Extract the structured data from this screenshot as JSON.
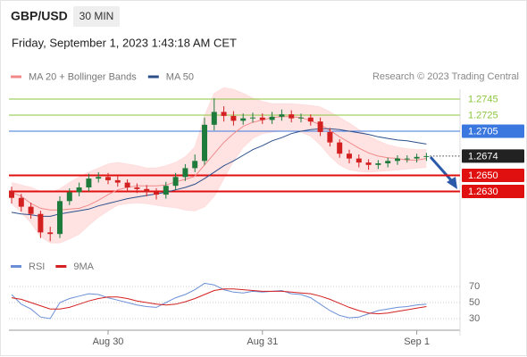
{
  "chart_data": [
    {
      "type": "candlestick",
      "title": "GBP/USD",
      "timeframe": "30 MIN",
      "subtitle": "Friday, September 1, 2023 1:43:18 AM CET",
      "attribution": "Research © 2023 Trading Central",
      "up_color": "#1e7b3c",
      "down_color": "#d32020",
      "categories": [
        null,
        null,
        null,
        null,
        null,
        null,
        null,
        null,
        null,
        null,
        "Aug 30",
        null,
        null,
        null,
        null,
        null,
        null,
        null,
        null,
        null,
        null,
        null,
        null,
        null,
        null,
        null,
        "Aug 31",
        null,
        null,
        null,
        null,
        null,
        null,
        null,
        null,
        null,
        null,
        null,
        null,
        null,
        null,
        null,
        "Sep 1",
        null
      ],
      "open": [
        1.263,
        1.2622,
        1.2611,
        1.2602,
        1.2579,
        1.2577,
        1.2618,
        1.2629,
        1.2635,
        1.2646,
        1.2648,
        1.2644,
        1.2641,
        1.2635,
        1.2633,
        1.2629,
        1.2626,
        1.2637,
        1.2648,
        1.2659,
        1.2668,
        1.2713,
        1.2729,
        1.2724,
        1.2718,
        1.2721,
        1.2722,
        1.2719,
        1.2723,
        1.2726,
        1.2721,
        1.2722,
        1.2717,
        1.2704,
        1.2691,
        1.2677,
        1.2671,
        1.2666,
        1.2663,
        1.2665,
        1.2668,
        1.2671,
        1.2671,
        1.2673
      ],
      "high": [
        1.2636,
        1.2627,
        1.2616,
        1.2606,
        1.2586,
        1.2624,
        1.2634,
        1.2641,
        1.2652,
        1.2654,
        1.2653,
        1.2649,
        1.2645,
        1.264,
        1.2638,
        1.2634,
        1.2642,
        1.2653,
        1.2664,
        1.2676,
        1.2722,
        1.2746,
        1.2736,
        1.273,
        1.2727,
        1.2728,
        1.2727,
        1.2729,
        1.2732,
        1.2731,
        1.2727,
        1.2726,
        1.2722,
        1.2709,
        1.2695,
        1.2682,
        1.2676,
        1.267,
        1.2669,
        1.2672,
        1.2675,
        1.2675,
        1.2677,
        1.2678
      ],
      "low": [
        1.2615,
        1.2605,
        1.2596,
        1.2572,
        1.2568,
        1.2572,
        1.2613,
        1.2624,
        1.263,
        1.2641,
        1.2639,
        1.2636,
        1.263,
        1.2628,
        1.2624,
        1.262,
        1.2621,
        1.2632,
        1.2643,
        1.2654,
        1.2663,
        1.2706,
        1.2717,
        1.2712,
        1.2713,
        1.2716,
        1.2714,
        1.2714,
        1.2718,
        1.2716,
        1.2716,
        1.2712,
        1.2699,
        1.2686,
        1.2672,
        1.2665,
        1.266,
        1.2657,
        1.2658,
        1.266,
        1.2663,
        1.2666,
        1.2666,
        1.2668
      ],
      "close": [
        1.2622,
        1.2611,
        1.2602,
        1.2579,
        1.2577,
        1.2618,
        1.2629,
        1.2635,
        1.2646,
        1.2648,
        1.2644,
        1.2641,
        1.2635,
        1.2633,
        1.2629,
        1.2626,
        1.2637,
        1.2648,
        1.2659,
        1.2668,
        1.2713,
        1.2729,
        1.2724,
        1.2718,
        1.2721,
        1.2722,
        1.2719,
        1.2723,
        1.2726,
        1.2721,
        1.2722,
        1.2717,
        1.2704,
        1.2691,
        1.2677,
        1.2671,
        1.2666,
        1.2663,
        1.2665,
        1.2668,
        1.2671,
        1.2671,
        1.2673,
        1.2674
      ],
      "series": [
        {
          "name": "MA 20 + Bollinger Bands",
          "color": "#f08a8a",
          "band_color": "#ffdcdc",
          "values": [
            1.2629,
            1.2624,
            1.2615,
            1.2609,
            1.2607,
            1.2607,
            1.2608,
            1.2609,
            1.2613,
            1.2619,
            1.2626,
            1.2632,
            1.2635,
            1.2637,
            1.2637,
            1.2637,
            1.2638,
            1.2642,
            1.2645,
            1.2649,
            1.2663,
            1.2677,
            1.2691,
            1.2702,
            1.2711,
            1.2716,
            1.2719,
            1.2722,
            1.2723,
            1.2723,
            1.2722,
            1.2718,
            1.2713,
            1.2706,
            1.2698,
            1.2691,
            1.2684,
            1.2678,
            1.2674,
            1.2672,
            1.2671,
            1.2669,
            1.2669,
            1.2671
          ],
          "upper": [
            1.2641,
            1.2638,
            1.2635,
            1.263,
            1.2629,
            1.2633,
            1.2641,
            1.2648,
            1.2654,
            1.2659,
            1.2664,
            1.2666,
            1.2664,
            1.2662,
            1.2659,
            1.2659,
            1.2662,
            1.2666,
            1.2673,
            1.2685,
            1.2724,
            1.2752,
            1.2759,
            1.2757,
            1.2752,
            1.2746,
            1.2742,
            1.2739,
            1.2739,
            1.2739,
            1.2738,
            1.2737,
            1.2735,
            1.2729,
            1.2722,
            1.2715,
            1.2707,
            1.2699,
            1.2693,
            1.2688,
            1.2685,
            1.2683,
            1.2682,
            1.2682
          ],
          "lower": [
            1.2615,
            1.2604,
            1.2591,
            1.2574,
            1.2566,
            1.2566,
            1.2571,
            1.2577,
            1.2588,
            1.2598,
            1.2606,
            1.2613,
            1.2615,
            1.2616,
            1.2615,
            1.2613,
            1.2611,
            1.261,
            1.2607,
            1.2606,
            1.2611,
            1.2624,
            1.2646,
            1.2668,
            1.2685,
            1.2696,
            1.2702,
            1.2704,
            1.2705,
            1.2705,
            1.2704,
            1.2699,
            1.2688,
            1.2674,
            1.2663,
            1.2657,
            1.2655,
            1.2654,
            1.2655,
            1.2656,
            1.2657,
            1.2658,
            1.2659,
            1.266
          ]
        },
        {
          "name": "MA 50",
          "color": "#2c4f8a",
          "values": [
            1.2604,
            1.2602,
            1.2601,
            1.2599,
            1.2599,
            1.2602,
            1.2604,
            1.2606,
            1.2608,
            1.2612,
            1.2615,
            1.2618,
            1.2621,
            1.2623,
            1.2625,
            1.2627,
            1.2629,
            1.2632,
            1.2635,
            1.2639,
            1.2646,
            1.2654,
            1.2662,
            1.2668,
            1.2675,
            1.2682,
            1.2687,
            1.2693,
            1.2697,
            1.2702,
            1.2705,
            1.2707,
            1.2708,
            1.2708,
            1.2707,
            1.2705,
            1.2703,
            1.2701,
            1.2698,
            1.2696,
            1.2694,
            1.2693,
            1.2691,
            1.2689
          ]
        }
      ],
      "levels": [
        {
          "value": 1.2745,
          "color": "#8cc63f",
          "boxed": false
        },
        {
          "value": 1.2725,
          "color": "#8cc63f",
          "boxed": false
        },
        {
          "value": 1.2705,
          "color": "#3a78e0",
          "boxed": true
        },
        {
          "value": 1.2674,
          "color": "#222222",
          "boxed": true,
          "current": true
        },
        {
          "value": 1.265,
          "label": "1.2650",
          "color": "#e01010",
          "boxed": true
        },
        {
          "value": 1.263,
          "label": "1.2630",
          "color": "#e01010",
          "boxed": true
        }
      ],
      "ylim": [
        1.2555,
        1.276
      ]
    },
    {
      "type": "line",
      "series": [
        {
          "name": "RSI",
          "color": "#6b8fd6",
          "values": [
            60,
            48,
            42,
            32,
            30,
            50,
            55,
            58,
            61,
            60,
            56,
            53,
            50,
            47,
            45,
            44,
            50,
            56,
            60,
            66,
            74,
            72,
            66,
            63,
            62,
            64,
            63,
            64,
            65,
            61,
            60,
            56,
            48,
            40,
            34,
            31,
            32,
            36,
            40,
            42,
            44,
            45,
            47,
            48
          ]
        },
        {
          "name": "9MA",
          "color": "#d42020",
          "values": [
            56,
            54,
            50,
            46,
            42,
            42,
            44,
            48,
            52,
            55,
            57,
            57,
            55,
            52,
            50,
            48,
            47,
            48,
            51,
            55,
            60,
            65,
            67,
            67,
            66,
            65,
            64,
            64,
            64,
            63,
            62,
            61,
            58,
            54,
            49,
            44,
            40,
            37,
            36,
            37,
            39,
            41,
            43,
            45
          ]
        }
      ],
      "ylim": [
        18,
        80
      ],
      "yticks": [
        70,
        50,
        30
      ],
      "grid": true
    }
  ]
}
